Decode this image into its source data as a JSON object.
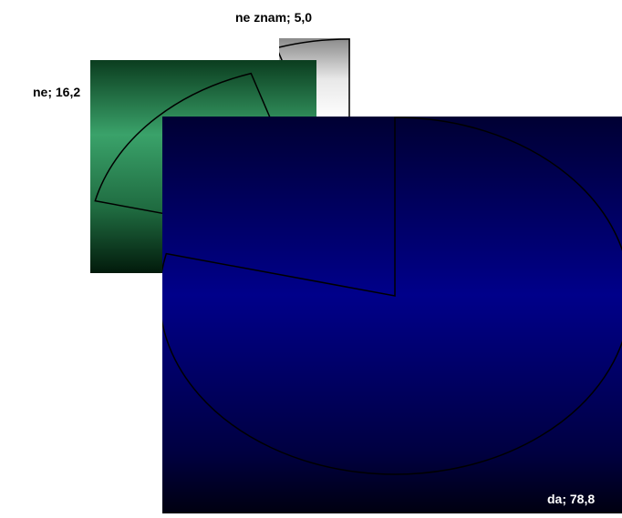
{
  "chart_data": {
    "type": "pie",
    "title": "",
    "slices": [
      {
        "category": "da",
        "value": 78.8,
        "label": "da; 78,8",
        "color": "#0a0a8a"
      },
      {
        "category": "ne",
        "value": 16.2,
        "label": "ne; 16,2",
        "color": "#2e8b57"
      },
      {
        "category": "ne znam",
        "value": 5.0,
        "label": "ne znam; 5,0",
        "color": "#a9a9a9"
      }
    ],
    "legend": "none",
    "style": "3d-exploded"
  }
}
